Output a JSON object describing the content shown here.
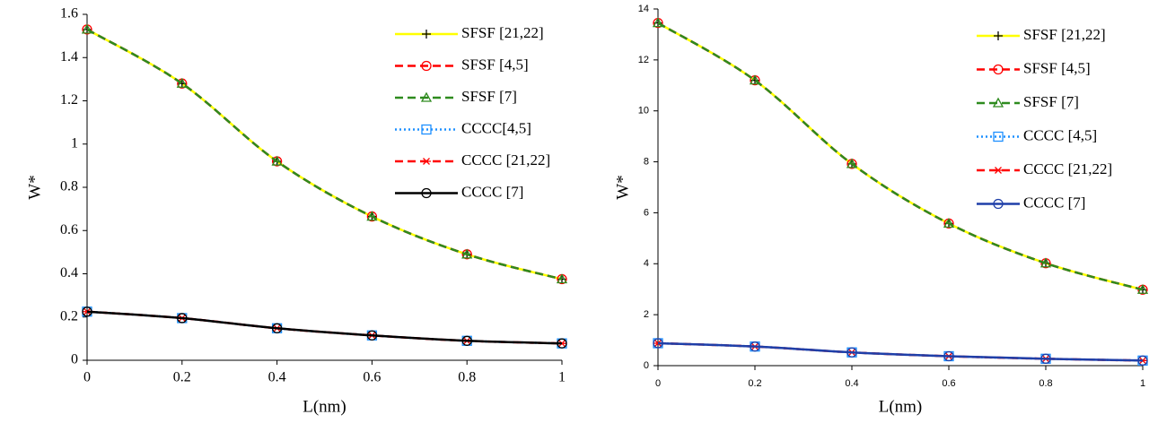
{
  "chart_data": [
    {
      "type": "line",
      "xlabel": "L(nm)",
      "ylabel": "W*",
      "x": [
        0,
        0.2,
        0.4,
        0.6,
        0.8,
        1
      ],
      "xlim": [
        0,
        1
      ],
      "xticks": [
        0,
        0.2,
        0.4,
        0.6,
        0.8,
        1
      ],
      "ylim": [
        0,
        1.6
      ],
      "yticks": [
        0,
        0.2,
        0.4,
        0.6,
        0.8,
        1,
        1.2,
        1.4,
        1.6
      ],
      "legend": "upper right",
      "series": [
        {
          "name": "SFSF [21,22]",
          "color": "#ffff00",
          "marker": "plus",
          "marker_color": "#000000",
          "dash": "solid",
          "values": [
            1.53,
            1.28,
            0.92,
            0.665,
            0.49,
            0.375
          ]
        },
        {
          "name": "SFSF [4,5]",
          "color": "#ff0000",
          "marker": "circle",
          "marker_color": "#ff0000",
          "dash": "dash",
          "values": [
            1.53,
            1.28,
            0.92,
            0.665,
            0.49,
            0.375
          ]
        },
        {
          "name": "SFSF [7]",
          "color": "#2e8b1e",
          "marker": "triangle",
          "marker_color": "#2e8b1e",
          "dash": "dash",
          "values": [
            1.53,
            1.28,
            0.92,
            0.665,
            0.49,
            0.375
          ]
        },
        {
          "name": "CCCC[4,5]",
          "color": "#1e90ff",
          "marker": "square",
          "marker_color": "#1e90ff",
          "dash": "dot",
          "values": [
            0.225,
            0.195,
            0.148,
            0.115,
            0.09,
            0.078
          ]
        },
        {
          "name": "CCCC [21,22]",
          "color": "#ff0000",
          "marker": "asterisk",
          "marker_color": "#ff0000",
          "dash": "dash",
          "values": [
            0.225,
            0.195,
            0.148,
            0.115,
            0.09,
            0.078
          ]
        },
        {
          "name": "CCCC [7]",
          "color": "#000000",
          "marker": "circle",
          "marker_color": "#000000",
          "dash": "solid",
          "values": [
            0.225,
            0.195,
            0.148,
            0.115,
            0.09,
            0.078
          ]
        }
      ]
    },
    {
      "type": "line",
      "xlabel": "L(nm)",
      "ylabel": "W*",
      "x": [
        0,
        0.2,
        0.4,
        0.6,
        0.8,
        1
      ],
      "xlim": [
        0,
        1
      ],
      "xticks": [
        0,
        0.2,
        0.4,
        0.6,
        0.8,
        1
      ],
      "ylim": [
        0,
        14
      ],
      "yticks": [
        0,
        2,
        4,
        6,
        8,
        10,
        12,
        14
      ],
      "legend": "upper right",
      "series": [
        {
          "name": "SFSF [21,22]",
          "color": "#ffff00",
          "marker": "plus",
          "marker_color": "#000000",
          "dash": "solid",
          "values": [
            13.45,
            11.2,
            7.92,
            5.58,
            4.02,
            2.98
          ]
        },
        {
          "name": "SFSF [4,5]",
          "color": "#ff0000",
          "marker": "circle",
          "marker_color": "#ff0000",
          "dash": "dash",
          "values": [
            13.45,
            11.2,
            7.92,
            5.58,
            4.02,
            2.98
          ]
        },
        {
          "name": "SFSF [7]",
          "color": "#2e8b1e",
          "marker": "triangle",
          "marker_color": "#2e8b1e",
          "dash": "dash",
          "values": [
            13.45,
            11.2,
            7.92,
            5.58,
            4.02,
            2.98
          ]
        },
        {
          "name": "CCCC [4,5]",
          "color": "#1e90ff",
          "marker": "square",
          "marker_color": "#1e90ff",
          "dash": "dot",
          "values": [
            0.88,
            0.75,
            0.52,
            0.37,
            0.27,
            0.2
          ]
        },
        {
          "name": "CCCC [21,22]",
          "color": "#ff0000",
          "marker": "asterisk",
          "marker_color": "#ff0000",
          "dash": "dash",
          "values": [
            0.88,
            0.75,
            0.52,
            0.37,
            0.27,
            0.2
          ]
        },
        {
          "name": "CCCC [7]",
          "color": "#1f3fa8",
          "marker": "circle",
          "marker_color": "#1f3fa8",
          "dash": "solid",
          "values": [
            0.88,
            0.75,
            0.52,
            0.37,
            0.27,
            0.2
          ]
        }
      ]
    }
  ]
}
